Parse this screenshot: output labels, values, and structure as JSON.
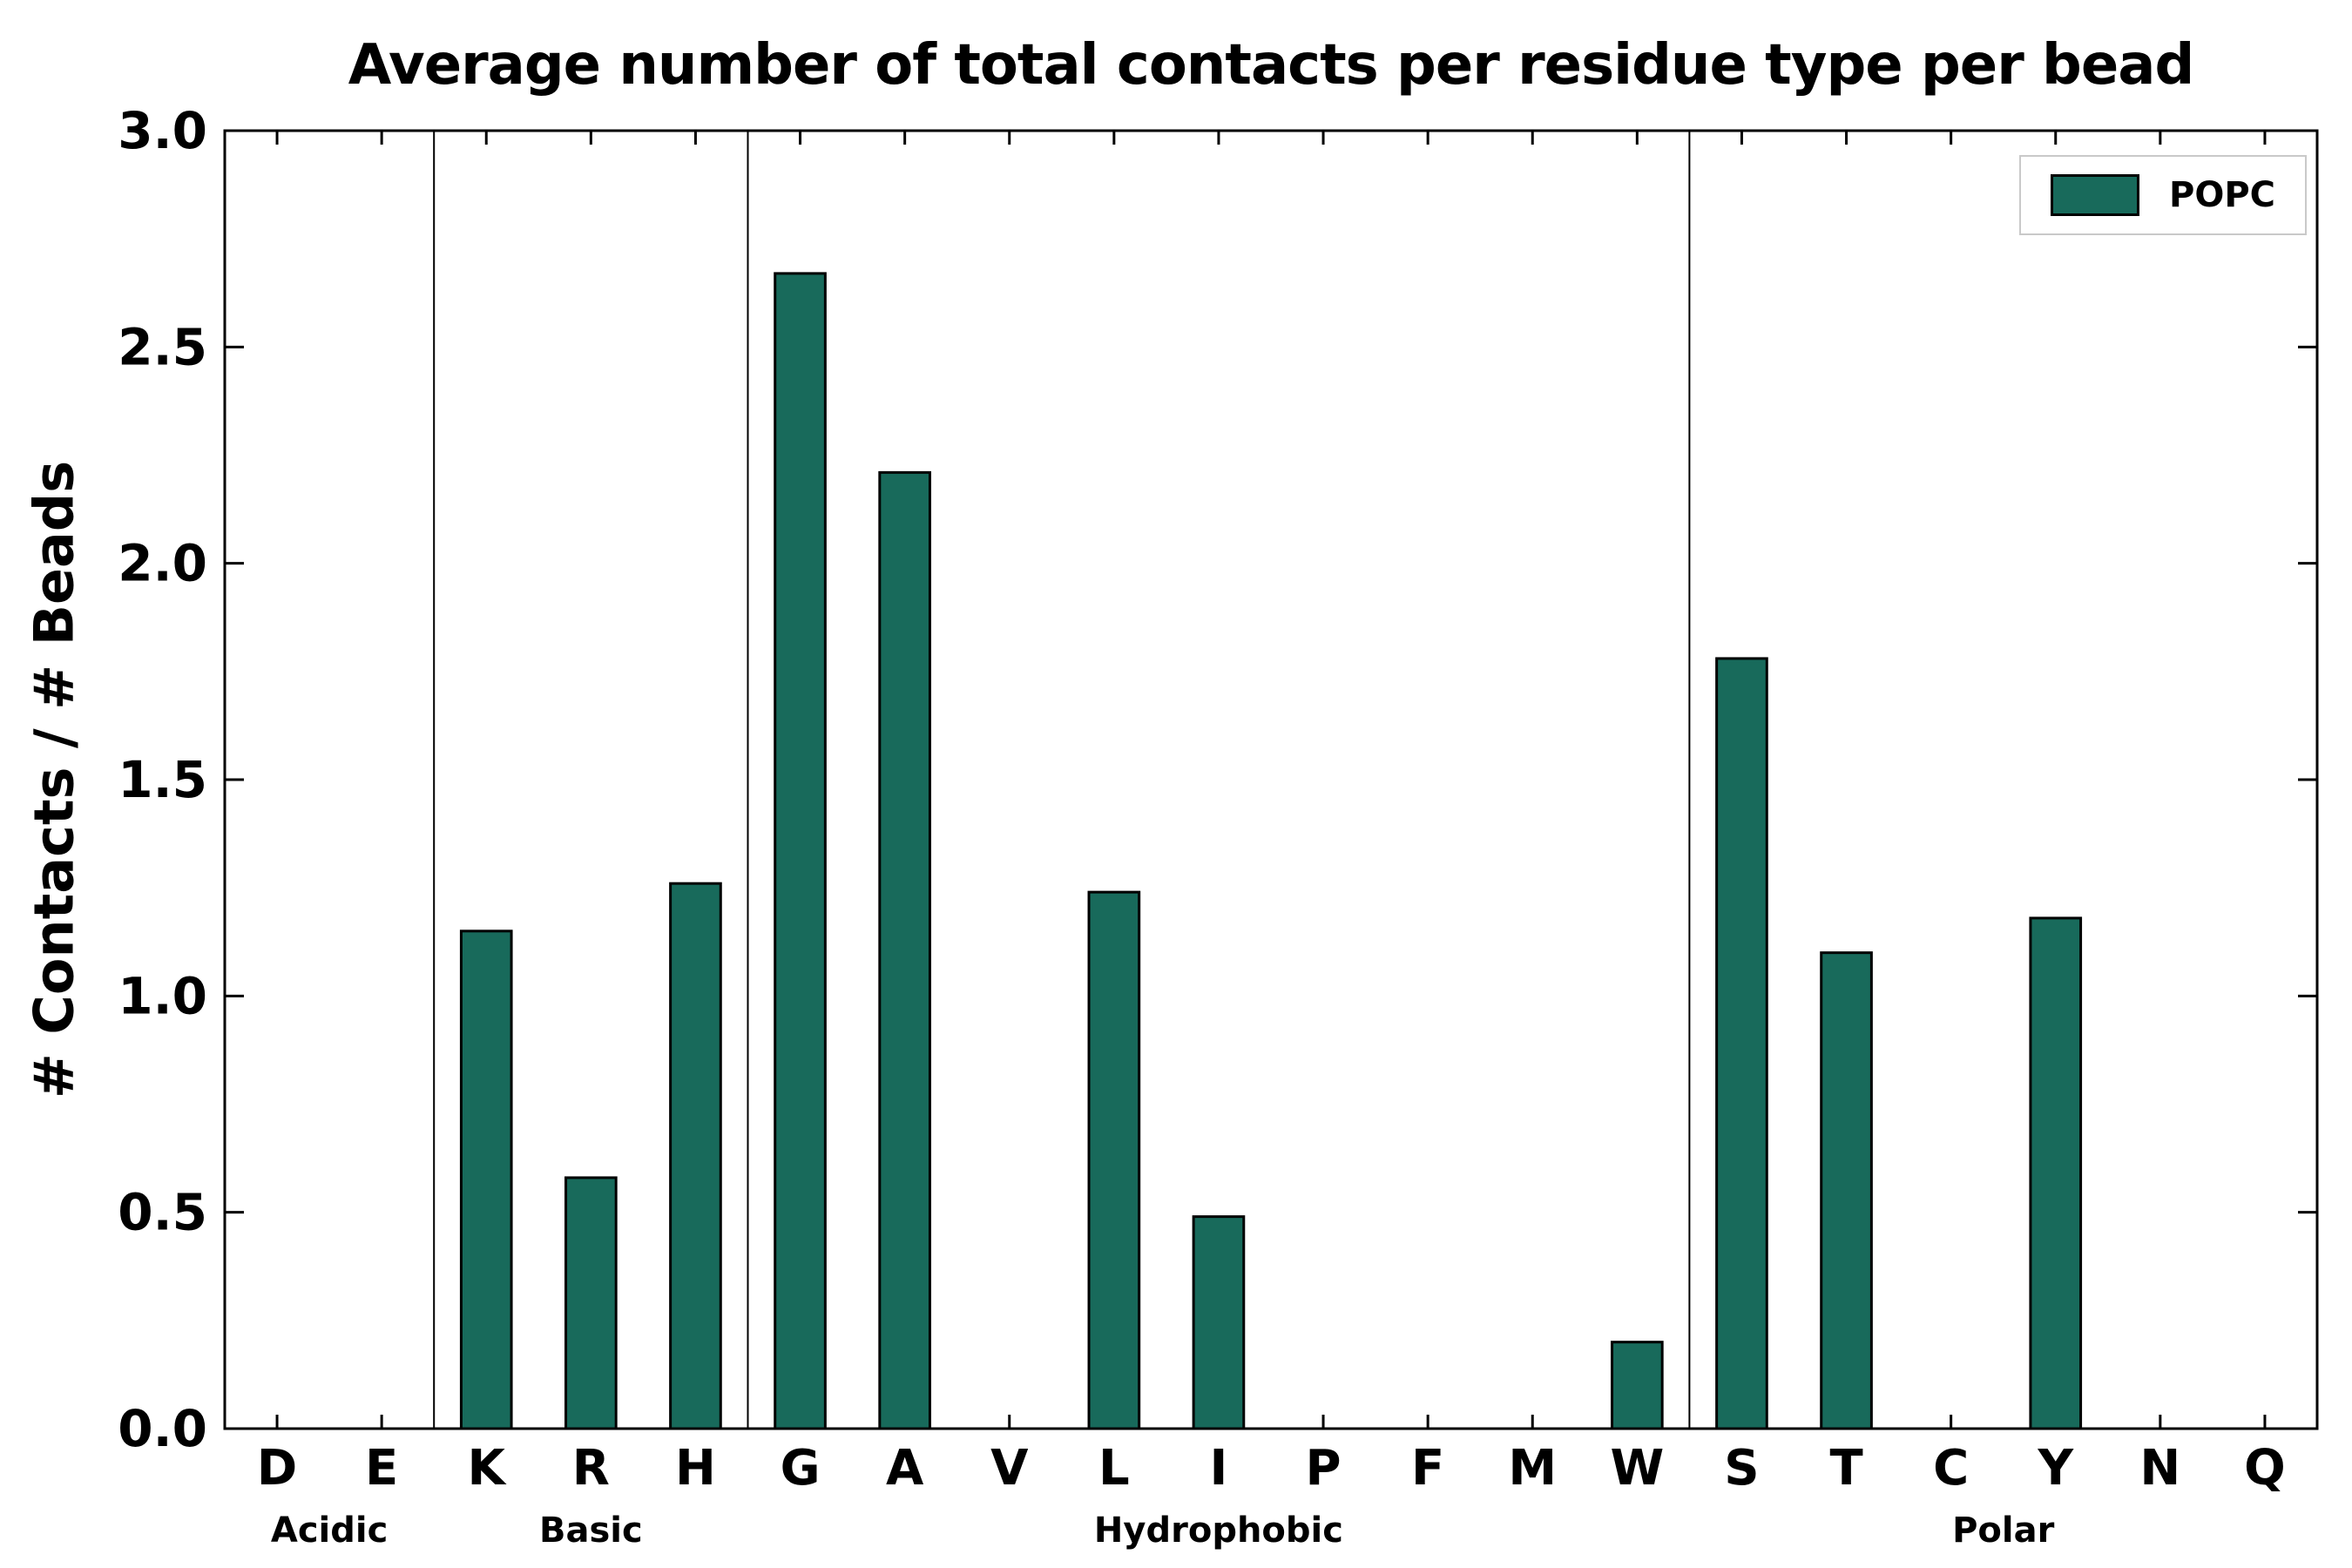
{
  "chart_data": {
    "type": "bar",
    "title": "Average number of total contacts per residue type per bead",
    "xlabel": "",
    "ylabel": "# Contacts / # Beads",
    "ylim": [
      0.0,
      3.0
    ],
    "yticks": [
      0.0,
      0.5,
      1.0,
      1.5,
      2.0,
      2.5,
      3.0
    ],
    "grid": false,
    "bar_color": "#186a5b",
    "bar_edge_color": "#000000",
    "legend": {
      "label": "POPC",
      "position": "upper right"
    },
    "groups": [
      {
        "label": "Acidic",
        "categories": [
          "D",
          "E"
        ],
        "values": [
          0,
          0
        ]
      },
      {
        "label": "Basic",
        "categories": [
          "K",
          "R",
          "H"
        ],
        "values": [
          1.15,
          0.58,
          1.26
        ]
      },
      {
        "label": "Hydrophobic",
        "categories": [
          "G",
          "A",
          "V",
          "L",
          "I",
          "P",
          "F",
          "M",
          "W"
        ],
        "values": [
          2.67,
          2.21,
          0,
          1.24,
          0.49,
          0,
          0,
          0,
          0.2
        ]
      },
      {
        "label": "Polar",
        "categories": [
          "S",
          "T",
          "C",
          "Y",
          "N",
          "Q"
        ],
        "values": [
          1.78,
          1.1,
          0,
          1.18,
          0,
          0
        ]
      }
    ]
  }
}
